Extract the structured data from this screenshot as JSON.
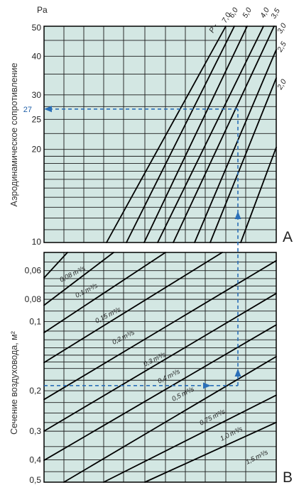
{
  "colors": {
    "panel_fill": "#d3e7e3",
    "grid": "#1a1a1a",
    "curve": "#000000",
    "highlight": "#2a6fb8"
  },
  "chart_data": [
    {
      "id": "A",
      "type": "line",
      "panel_label": "A",
      "unit_label": "Pa",
      "ylabel": "Аэродинамическое сопротивление",
      "yscale": "log",
      "ylim": [
        10,
        50
      ],
      "yticks": [
        {
          "value": 10,
          "label": "10"
        },
        {
          "value": 20,
          "label": "20"
        },
        {
          "value": 25,
          "label": "25"
        },
        {
          "value": 30,
          "label": "30"
        },
        {
          "value": 40,
          "label": "40"
        },
        {
          "value": 50,
          "label": "50"
        }
      ],
      "xticks": [],
      "series_prefix": "P -",
      "series": [
        {
          "name": "7,0",
          "points": [
            [
              150,
              10
            ],
            [
              318,
              50
            ]
          ]
        },
        {
          "name": "6,0",
          "points": [
            [
              178,
              10
            ],
            [
              330,
              50
            ]
          ]
        },
        {
          "name": "5,0",
          "points": [
            [
              203,
              10
            ],
            [
              348,
              50
            ]
          ]
        },
        {
          "name": "4,0",
          "points": [
            [
              222,
              10
            ],
            [
              371,
              50
            ]
          ]
        },
        {
          "name": "3,5",
          "points": [
            [
              244,
              10
            ],
            [
              386,
              50
            ]
          ]
        },
        {
          "name": "3,0",
          "points": [
            [
              274,
              10
            ],
            [
              389,
              42
            ]
          ]
        },
        {
          "name": "2,5",
          "points": [
            [
              296,
              10
            ],
            [
              389,
              34
            ]
          ]
        },
        {
          "name": "2,0",
          "points": [
            [
              339,
              10
            ],
            [
              389,
              20.3
            ]
          ]
        }
      ],
      "highlight": {
        "value": 27,
        "label": "27"
      }
    },
    {
      "id": "B",
      "type": "line",
      "panel_label": "B",
      "ylabel": "Сечение воздуховода, м²",
      "yscale": "log",
      "ylim": [
        0.05,
        0.5
      ],
      "yticks": [
        {
          "value": 0.06,
          "label": "0,06"
        },
        {
          "value": 0.08,
          "label": "0,08"
        },
        {
          "value": 0.1,
          "label": "0,1"
        },
        {
          "value": 0.2,
          "label": "0,2"
        },
        {
          "value": 0.3,
          "label": "0,3"
        },
        {
          "value": 0.4,
          "label": "0,4"
        },
        {
          "value": 0.5,
          "label": "0,5"
        }
      ],
      "xticks": [],
      "series_unit": "m³/s",
      "series": [
        {
          "name": "0,08",
          "points": [
            [
              62,
              0.0645
            ],
            [
              95,
              0.05
            ]
          ]
        },
        {
          "name": "0,1",
          "points": [
            [
              62,
              0.0849
            ],
            [
              160,
              0.05
            ]
          ]
        },
        {
          "name": "0,15",
          "points": [
            [
              62,
              0.1117
            ],
            [
              233,
              0.05
            ]
          ]
        },
        {
          "name": "0,2",
          "points": [
            [
              62,
              0.1508
            ],
            [
              313,
              0.05
            ]
          ]
        },
        {
          "name": "0,3",
          "points": [
            [
              62,
              0.2184
            ],
            [
              389,
              0.0543
            ]
          ]
        },
        {
          "name": "0,4",
          "points": [
            [
              62,
              0.2998
            ],
            [
              389,
              0.0754
            ]
          ]
        },
        {
          "name": "0,5",
          "points": [
            [
              62,
              0.4017
            ],
            [
              389,
              0.1033
            ]
          ]
        },
        {
          "name": "0,75",
          "points": [
            [
              90,
              0.5
            ],
            [
              389,
              0.142
            ]
          ]
        },
        {
          "name": "1,0",
          "points": [
            [
              146,
              0.5
            ],
            [
              389,
              0.2091
            ]
          ]
        },
        {
          "name": "1,5",
          "points": [
            [
              204,
              0.5
            ],
            [
              389,
              0.2747
            ]
          ]
        }
      ],
      "highlight": {
        "value": 0.19,
        "label": "0,2"
      }
    }
  ]
}
